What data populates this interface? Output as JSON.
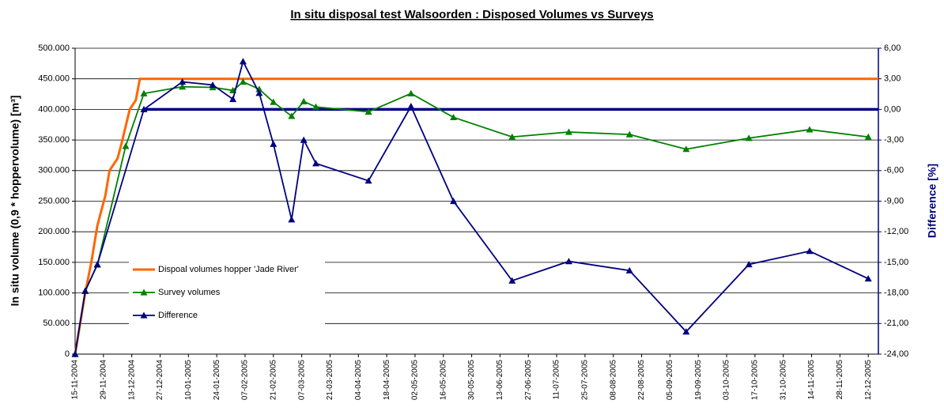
{
  "chart_data": {
    "type": "line",
    "title": "In situ disposal test Walsoorden : Disposed Volumes vs Surveys",
    "y_label": "In situ volume (0,9 * hoppervolume) [m³]",
    "y2_label": "Difference [%]",
    "xlim": [
      "15-11-2004",
      "17-12-2005"
    ],
    "xticks": [
      "15-11-2004",
      "29-11-2004",
      "13-12-2004",
      "27-12-2004",
      "10-01-2005",
      "24-01-2005",
      "07-02-2005",
      "21-02-2005",
      "07-03-2005",
      "21-03-2005",
      "04-04-2005",
      "18-04-2005",
      "02-05-2005",
      "16-05-2005",
      "30-05-2005",
      "13-06-2005",
      "27-06-2005",
      "11-07-2005",
      "25-07-2005",
      "08-08-2005",
      "22-08-2005",
      "05-09-2005",
      "19-09-2005",
      "03-10-2005",
      "17-10-2005",
      "31-10-2005",
      "14-11-2005",
      "28-11-2005",
      "12-12-2005"
    ],
    "ylim": [
      0,
      500000
    ],
    "yticks": [
      0,
      {
        "value": 50000,
        "label": "50.000"
      },
      {
        "value": 100000,
        "label": "100.000"
      },
      {
        "value": 150000,
        "label": "150.000"
      },
      {
        "value": 200000,
        "label": "200.000"
      },
      {
        "value": 250000,
        "label": "250.000"
      },
      {
        "value": 300000,
        "label": "300.000"
      },
      {
        "value": 350000,
        "label": "350.000"
      },
      {
        "value": 400000,
        "label": "400.000"
      },
      {
        "value": 450000,
        "label": "450.000"
      },
      {
        "value": 500000,
        "label": "500.000"
      }
    ],
    "y2lim": [
      -24,
      6
    ],
    "y2ticks": [
      {
        "value": -24,
        "label": "-24,00"
      },
      {
        "value": -21,
        "label": "-21,00"
      },
      {
        "value": -18,
        "label": "-18,00"
      },
      {
        "value": -15,
        "label": "-15,00"
      },
      {
        "value": -12,
        "label": "-12,00"
      },
      {
        "value": -9,
        "label": "-9,00"
      },
      {
        "value": -6,
        "label": "-6,00"
      },
      {
        "value": -3,
        "label": "-3,00"
      },
      {
        "value": 0,
        "label": "0,00"
      },
      {
        "value": 3,
        "label": "3,00"
      },
      {
        "value": 6,
        "label": "6,00"
      }
    ],
    "grid": true,
    "legend": "bottom-left",
    "y2_reference_line": {
      "value": 0,
      "from": "19-12-2004",
      "color": "#000080"
    },
    "series": [
      {
        "name": "Dispoal volumes hopper 'Jade River'",
        "color": "#ff6600",
        "marker": false,
        "x": [
          "15-11-2004",
          "20-11-2004",
          "23-11-2004",
          "26-11-2004",
          "30-11-2004",
          "02-12-2004",
          "06-12-2004",
          "08-12-2004",
          "12-12-2004",
          "15-12-2004",
          "17-12-2004",
          "17-12-2005"
        ],
        "values": [
          0,
          100000,
          150000,
          210000,
          260000,
          300000,
          320000,
          345000,
          400000,
          415000,
          450000,
          450000
        ]
      },
      {
        "name": "Survey volumes",
        "color": "#008000",
        "marker": true,
        "x": [
          "15-11-2004",
          "20-11-2004",
          "26-11-2004",
          "10-12-2004",
          "19-12-2004",
          "07-01-2005",
          "22-01-2005",
          "01-02-2005",
          "06-02-2005",
          "14-02-2005",
          "21-02-2005",
          "02-03-2005",
          "08-03-2005",
          "14-03-2005",
          "09-04-2005",
          "30-04-2005",
          "21-05-2005",
          "19-06-2005",
          "17-07-2005",
          "16-08-2005",
          "13-09-2005",
          "14-10-2005",
          "13-11-2005",
          "12-12-2005"
        ],
        "values": [
          0,
          103000,
          146000,
          340000,
          426000,
          437000,
          436000,
          431000,
          445000,
          433000,
          412000,
          389000,
          413000,
          404000,
          396000,
          426000,
          387000,
          355000,
          363000,
          359000,
          335000,
          353000,
          367000,
          355000
        ]
      },
      {
        "name": "Difference",
        "color": "#000080",
        "marker": true,
        "axis": "y2",
        "x": [
          "15-11-2004",
          "20-11-2004",
          "26-11-2004",
          "19-12-2004",
          "07-01-2005",
          "22-01-2005",
          "01-02-2005",
          "06-02-2005",
          "14-02-2005",
          "21-02-2005",
          "02-03-2005",
          "08-03-2005",
          "14-03-2005",
          "09-04-2005",
          "30-04-2005",
          "21-05-2005",
          "19-06-2005",
          "17-07-2005",
          "16-08-2005",
          "13-09-2005",
          "14-10-2005",
          "13-11-2005",
          "12-12-2005"
        ],
        "values": [
          -24,
          -17.8,
          -15.2,
          0,
          2.7,
          2.4,
          1.0,
          4.7,
          1.6,
          -3.4,
          -10.8,
          -3.0,
          -5.3,
          -7.0,
          0.3,
          -9.0,
          -16.8,
          -14.9,
          -15.8,
          -21.8,
          -15.2,
          -13.9,
          -16.6
        ]
      }
    ]
  }
}
